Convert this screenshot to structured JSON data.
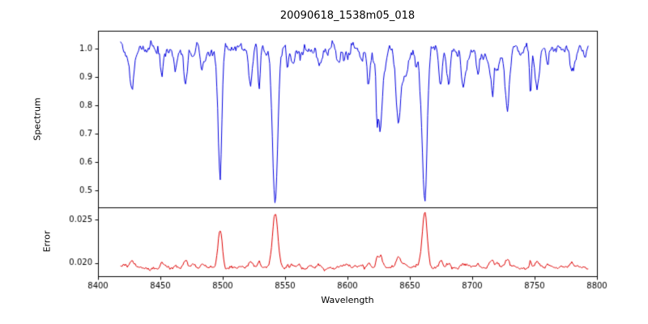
{
  "chart_data": {
    "type": "line",
    "title": "20090618_1538m05_018",
    "xlabel": "Wavelength",
    "x_range": [
      8418,
      8793
    ],
    "noise_seed": 11,
    "grid": false,
    "legend": "none",
    "x_axis": {
      "min": 8400,
      "max": 8800,
      "ticks": [
        8400,
        8450,
        8500,
        8550,
        8600,
        8650,
        8700,
        8750,
        8800
      ],
      "labels": [
        "8400",
        "8450",
        "8500",
        "8550",
        "8600",
        "8650",
        "8700",
        "8750",
        "8800"
      ]
    },
    "panels": [
      {
        "name": "spectrum",
        "ylabel": "Spectrum",
        "color": "#0000dd",
        "ylim": [
          0.44,
          1.063
        ],
        "yticks": [
          0.5,
          0.6,
          0.7,
          0.8,
          0.9,
          1.0
        ],
        "ytick_labels": [
          "0.5",
          "0.6",
          "0.7",
          "0.8",
          "0.9",
          "1.0"
        ],
        "baseline": 1.0,
        "noise_sigma": 0.011,
        "absorption_lines": [
          {
            "center": 8498,
            "depth": 0.38,
            "width": 1.4
          },
          {
            "center": 8542,
            "depth": 0.535,
            "width": 2.1
          },
          {
            "center": 8662,
            "depth": 0.515,
            "width": 1.8
          }
        ],
        "minor_lines": {
          "count": 55,
          "depth_min": 0.02,
          "depth_max": 0.15,
          "width_min": 0.6,
          "width_max": 2.0,
          "seed": 7
        }
      },
      {
        "name": "error",
        "ylabel": "Error",
        "color": "#dd0000",
        "ylim": [
          0.0185,
          0.0264
        ],
        "yticks": [
          0.02,
          0.025
        ],
        "ytick_labels": [
          "0.020",
          "0.025"
        ],
        "baseline": 0.0195,
        "noise_sigma": 0.00012,
        "peaks": [
          {
            "center": 8498,
            "amp": 0.0038,
            "width": 1.6
          },
          {
            "center": 8542,
            "amp": 0.0063,
            "width": 2.1
          },
          {
            "center": 8662,
            "amp": 0.0062,
            "width": 1.9
          }
        ]
      }
    ]
  }
}
